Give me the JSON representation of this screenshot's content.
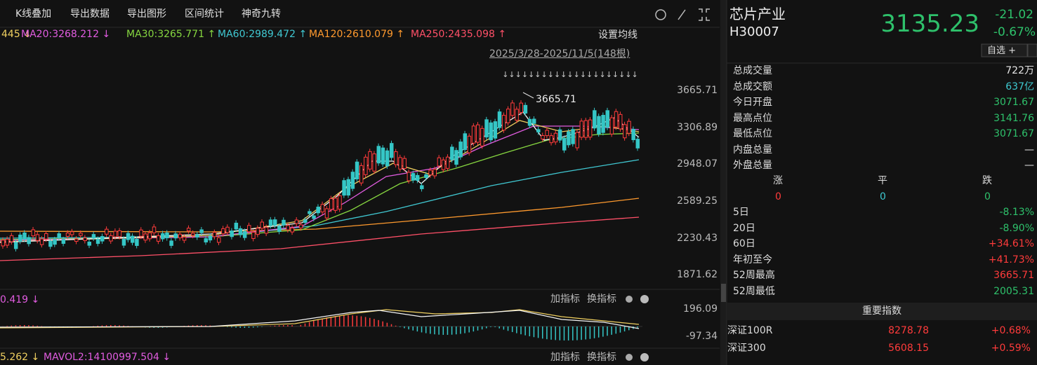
{
  "toolbar": {
    "items": [
      "K线叠加",
      "导出数据",
      "导出图形",
      "区间统计",
      "神奇九转"
    ]
  },
  "ma_legend": [
    {
      "text": "445 ↓",
      "color": "#f0d060"
    },
    {
      "text": "MA20:3268.212 ↓",
      "color": "#e15ce0"
    },
    {
      "text": "MA30:3265.771 ↑",
      "color": "#86d640"
    },
    {
      "text": "MA60:2989.472 ↑",
      "color": "#40c8d2"
    },
    {
      "text": "MA120:2610.079 ↑",
      "color": "#ff9a2e"
    },
    {
      "text": "MA250:2435.098 ↑",
      "color": "#ff5068"
    }
  ],
  "settings": "设置均线",
  "range": "2025/3/28-2025/11/5(148根)",
  "peak_label": "3665.71",
  "price_axis": [
    "3665.71",
    "3306.89",
    "2948.07",
    "2589.25",
    "2230.43",
    "1871.62"
  ],
  "macd": {
    "legend": "0.419 ↓",
    "buttons": [
      "加指标",
      "换指标"
    ],
    "axis": [
      "196.09",
      "-97.34"
    ]
  },
  "vol": {
    "legend": [
      "5.262 ↓",
      "MAVOL2:14100997.504 ↓"
    ],
    "buttons": [
      "加指标",
      "换指标"
    ]
  },
  "quote": {
    "name": "芯片产业",
    "code": "H30007",
    "price": "3135.23",
    "change": "-21.02",
    "pct": "-0.67%",
    "watch": "自选 +"
  },
  "stats": [
    {
      "label": "总成交量",
      "value": "722万",
      "color": "#e6e6e6"
    },
    {
      "label": "总成交额",
      "value": "637亿",
      "color": "#3ec8d0"
    },
    {
      "label": "今日开盘",
      "value": "3071.67",
      "color": "#2ec16b"
    },
    {
      "label": "最高点位",
      "value": "3141.76",
      "color": "#2ec16b"
    },
    {
      "label": "最低点位",
      "value": "3071.67",
      "color": "#2ec16b"
    },
    {
      "label": "内盘总量",
      "value": "—",
      "color": "#e6e6e6"
    },
    {
      "label": "外盘总量",
      "value": "—",
      "color": "#e6e6e6"
    }
  ],
  "breadth": {
    "labels": [
      "涨",
      "平",
      "跌"
    ],
    "values": [
      "0",
      "0",
      "0"
    ],
    "colors": [
      "#ff3b3b",
      "#3ec8d0",
      "#2ec16b"
    ]
  },
  "periods": [
    {
      "label": "5日",
      "value": "-8.13%",
      "color": "#2ec16b"
    },
    {
      "label": "20日",
      "value": "-8.90%",
      "color": "#2ec16b"
    },
    {
      "label": "60日",
      "value": "+34.61%",
      "color": "#ff3b3b"
    },
    {
      "label": "年初至今",
      "value": "+41.73%",
      "color": "#ff3b3b"
    },
    {
      "label": "52周最高",
      "value": "3665.71",
      "color": "#ff3b3b"
    },
    {
      "label": "52周最低",
      "value": "2005.31",
      "color": "#2ec16b"
    }
  ],
  "indices": {
    "title": "重要指数",
    "rows": [
      {
        "name": "深证100R",
        "value": "8278.78",
        "pct": "+0.68%"
      },
      {
        "name": "深证300",
        "value": "5608.15",
        "pct": "+0.59%"
      }
    ]
  }
}
